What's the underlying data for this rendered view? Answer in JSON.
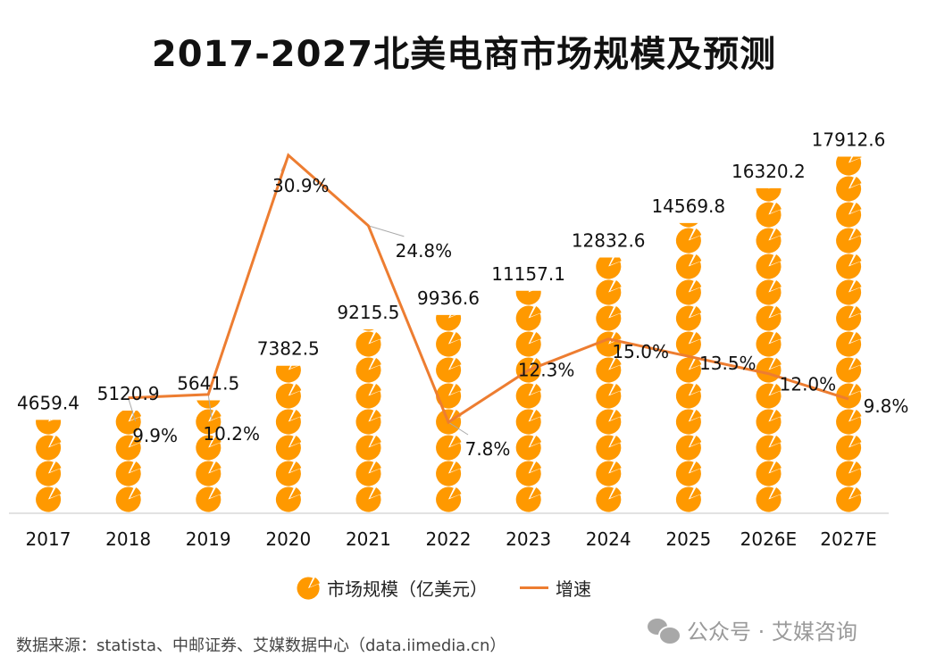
{
  "chart_data": {
    "type": "bar",
    "title": "2017-2027北美电商市场规模及预测",
    "categories": [
      "2017",
      "2018",
      "2019",
      "2020",
      "2021",
      "2022",
      "2023",
      "2024",
      "2025",
      "2026E",
      "2027E"
    ],
    "series": [
      {
        "name": "市场规模（亿美元）",
        "type": "pictogram-bar",
        "color": "#FF9900",
        "values": [
          4659.4,
          5120.9,
          5641.5,
          7382.5,
          9215.5,
          9936.6,
          11157.1,
          12832.6,
          14569.8,
          16320.2,
          17912.6
        ],
        "labels": [
          "4659.4",
          "5120.9",
          "5641.5",
          "7382.5",
          "9215.5",
          "9936.6",
          "11157.1",
          "12832.6",
          "14569.8",
          "16320.2",
          "17912.6"
        ]
      },
      {
        "name": "增速",
        "type": "line",
        "color": "#ED7D31",
        "values": [
          null,
          9.9,
          10.2,
          30.9,
          24.8,
          7.8,
          12.3,
          15.0,
          13.5,
          12.0,
          9.8
        ],
        "labels": [
          "",
          "9.9%",
          "10.2%",
          "30.9%",
          "24.8%",
          "7.8%",
          "12.3%",
          "15.0%",
          "13.5%",
          "12.0%",
          "9.8%"
        ]
      }
    ],
    "legend_position": "bottom",
    "grid": false,
    "icon": "pie-chart-icon"
  },
  "source": "数据来源：statista、中邮证券、艾媒数据中心（data.iimedia.cn）",
  "watermark": "公众号 · 艾媒咨询"
}
